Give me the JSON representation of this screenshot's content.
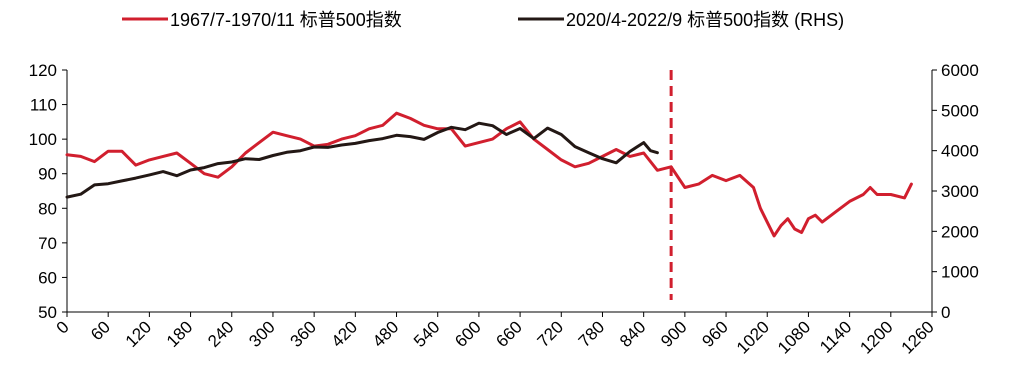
{
  "chart_data": {
    "type": "line",
    "title": "",
    "xlabel": "",
    "ylabel": "",
    "legend_position": "top",
    "grid": false,
    "x_ticks": [
      0,
      60,
      120,
      180,
      240,
      300,
      360,
      420,
      480,
      540,
      600,
      660,
      720,
      780,
      840,
      900,
      960,
      1020,
      1080,
      1140,
      1200,
      1260
    ],
    "xlim": [
      0,
      1260
    ],
    "y_left": {
      "ylim": [
        50,
        120
      ],
      "ticks": [
        50,
        60,
        70,
        80,
        90,
        100,
        110,
        120
      ]
    },
    "y_right": {
      "ylim": [
        0,
        6000
      ],
      "ticks": [
        0,
        1000,
        2000,
        3000,
        4000,
        5000,
        6000
      ]
    },
    "vertical_marker": {
      "x": 880,
      "style": "dashed",
      "color": "#d11f2e"
    },
    "series": [
      {
        "name": "1967/7-1970/11 标普500指数",
        "axis": "left",
        "color": "#d11f2e",
        "x": [
          0,
          20,
          40,
          60,
          80,
          100,
          120,
          140,
          160,
          180,
          200,
          220,
          240,
          260,
          280,
          300,
          320,
          340,
          360,
          380,
          400,
          420,
          440,
          460,
          480,
          500,
          520,
          540,
          560,
          580,
          600,
          620,
          640,
          660,
          680,
          700,
          720,
          740,
          760,
          780,
          800,
          820,
          840,
          860,
          880,
          900,
          920,
          940,
          960,
          980,
          1000,
          1010,
          1020,
          1030,
          1040,
          1050,
          1060,
          1070,
          1080,
          1090,
          1100,
          1120,
          1140,
          1160,
          1170,
          1180,
          1200,
          1220,
          1230
        ],
        "values": [
          95.5,
          95,
          93.5,
          96.5,
          96.5,
          92.5,
          94,
          95,
          96,
          93,
          90,
          89,
          92,
          96,
          99,
          102,
          101,
          100,
          98,
          98.5,
          100,
          101,
          103,
          104,
          107.5,
          106,
          104,
          103,
          103,
          98,
          99,
          100,
          103,
          105,
          100,
          97,
          94,
          92,
          93,
          95,
          97,
          95,
          96,
          91,
          92,
          86,
          87,
          89.5,
          88,
          89.5,
          86,
          80,
          76,
          72,
          75,
          77,
          74,
          73,
          77,
          78,
          76,
          79,
          82,
          84,
          86,
          84,
          84,
          83,
          87
        ]
      },
      {
        "name": "2020/4-2022/9 标普500指数 (RHS)",
        "axis": "right",
        "color": "#231815",
        "x": [
          0,
          20,
          40,
          60,
          80,
          100,
          120,
          140,
          160,
          180,
          200,
          220,
          240,
          260,
          280,
          300,
          320,
          340,
          360,
          380,
          400,
          420,
          440,
          460,
          480,
          500,
          520,
          540,
          560,
          580,
          600,
          620,
          640,
          660,
          680,
          700,
          720,
          740,
          760,
          780,
          800,
          820,
          840,
          850,
          860
        ],
        "values": [
          2850,
          2920,
          3150,
          3180,
          3250,
          3320,
          3400,
          3480,
          3380,
          3520,
          3580,
          3680,
          3720,
          3800,
          3780,
          3880,
          3960,
          4000,
          4090,
          4080,
          4140,
          4180,
          4250,
          4300,
          4380,
          4350,
          4280,
          4450,
          4580,
          4520,
          4680,
          4620,
          4400,
          4550,
          4300,
          4560,
          4400,
          4100,
          3950,
          3800,
          3700,
          3980,
          4200,
          4000,
          3950
        ]
      }
    ]
  }
}
